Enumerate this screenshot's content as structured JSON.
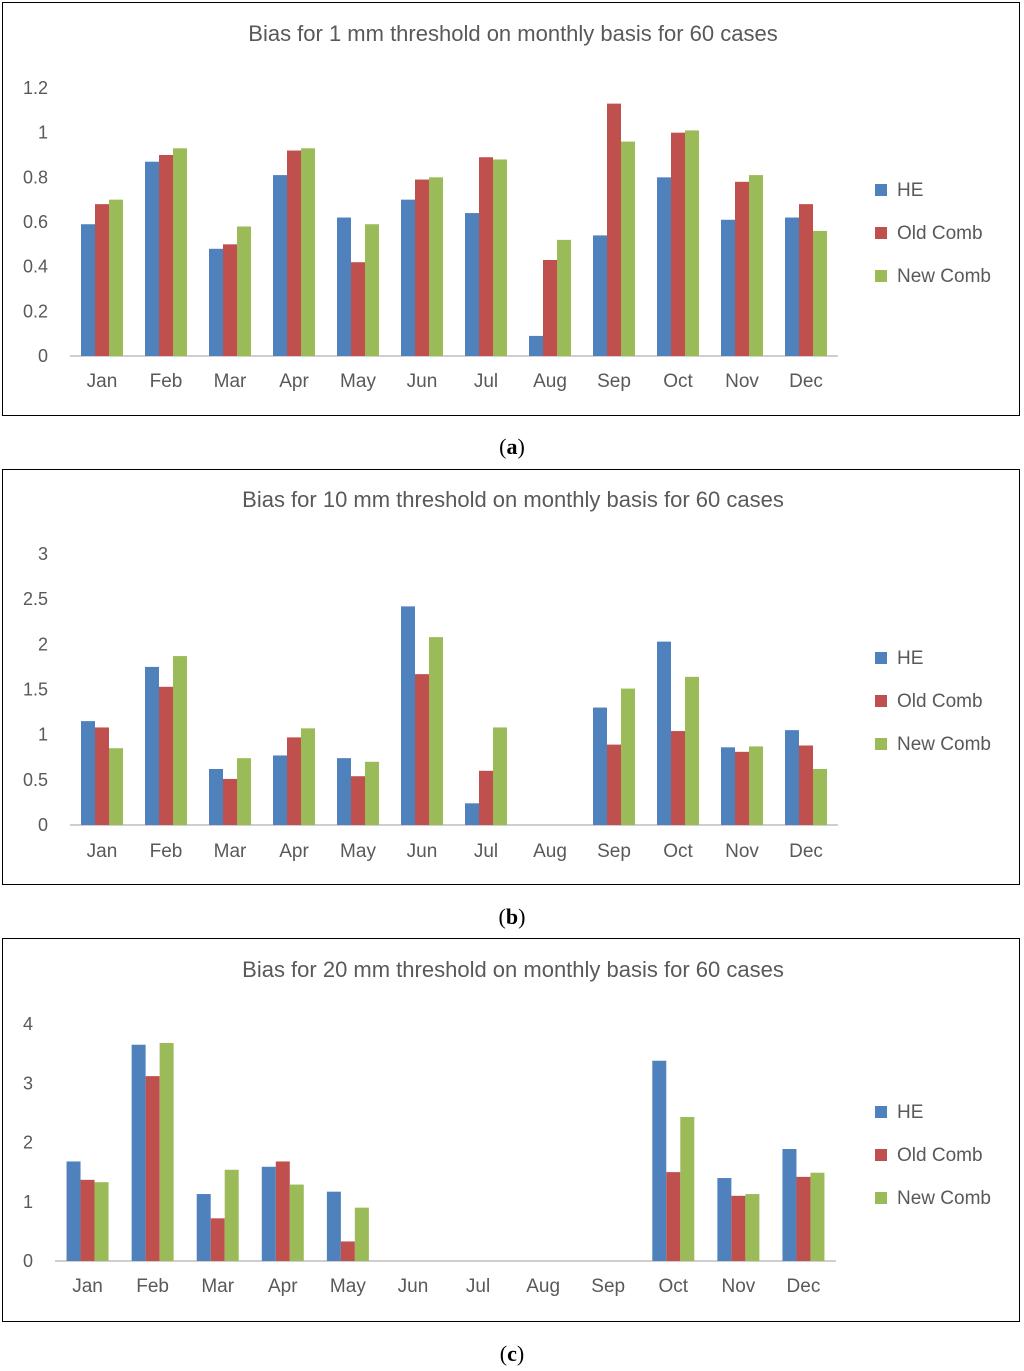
{
  "chart_data": [
    {
      "type": "bar",
      "title": "Bias for 1 mm threshold on monthly basis for 60 cases",
      "caption": "a",
      "categories": [
        "Jan",
        "Feb",
        "Mar",
        "Apr",
        "May",
        "Jun",
        "Jul",
        "Aug",
        "Sep",
        "Oct",
        "Nov",
        "Dec"
      ],
      "series": [
        {
          "name": "HE",
          "color": "#4F81BD",
          "values": [
            0.59,
            0.87,
            0.48,
            0.81,
            0.62,
            0.7,
            0.64,
            0.09,
            0.54,
            0.8,
            0.61,
            0.62
          ]
        },
        {
          "name": "Old Comb",
          "color": "#C0504D",
          "values": [
            0.68,
            0.9,
            0.5,
            0.92,
            0.42,
            0.79,
            0.89,
            0.43,
            1.13,
            1.0,
            0.78,
            0.68
          ]
        },
        {
          "name": "New Comb",
          "color": "#9BBB59",
          "values": [
            0.7,
            0.93,
            0.58,
            0.93,
            0.59,
            0.8,
            0.88,
            0.52,
            0.96,
            1.01,
            0.81,
            0.56
          ]
        }
      ],
      "ylim": [
        0,
        1.2
      ],
      "yticks": [
        0,
        0.2,
        0.4,
        0.6,
        0.8,
        1,
        1.2
      ],
      "ytick_labels": [
        "0",
        "0.2",
        "0.4",
        "0.6",
        "0.8",
        "1",
        "1.2"
      ],
      "xlabel": "",
      "ylabel": "",
      "legend": "right",
      "grid": false
    },
    {
      "type": "bar",
      "title": "Bias for 10 mm threshold on monthly basis for 60 cases",
      "caption": "b",
      "categories": [
        "Jan",
        "Feb",
        "Mar",
        "Apr",
        "May",
        "Jun",
        "Jul",
        "Aug",
        "Sep",
        "Oct",
        "Nov",
        "Dec"
      ],
      "series": [
        {
          "name": "HE",
          "color": "#4F81BD",
          "values": [
            1.15,
            1.75,
            0.62,
            0.77,
            0.74,
            2.42,
            0.24,
            0,
            1.3,
            2.03,
            0.86,
            1.05
          ]
        },
        {
          "name": "Old Comb",
          "color": "#C0504D",
          "values": [
            1.08,
            1.53,
            0.51,
            0.97,
            0.54,
            1.67,
            0.6,
            0,
            0.89,
            1.04,
            0.81,
            0.88
          ]
        },
        {
          "name": "New Comb",
          "color": "#9BBB59",
          "values": [
            0.85,
            1.87,
            0.74,
            1.07,
            0.7,
            2.08,
            1.08,
            0,
            1.51,
            1.64,
            0.87,
            0.62
          ]
        }
      ],
      "ylim": [
        0,
        3
      ],
      "yticks": [
        0,
        0.5,
        1,
        1.5,
        2,
        2.5,
        3
      ],
      "ytick_labels": [
        "0",
        "0.5",
        "1",
        "1.5",
        "2",
        "2.5",
        "3"
      ],
      "xlabel": "",
      "ylabel": "",
      "legend": "right",
      "grid": false
    },
    {
      "type": "bar",
      "title": "Bias for 20 mm threshold on monthly basis for 60 cases",
      "caption": "c",
      "categories": [
        "Jan",
        "Feb",
        "Mar",
        "Apr",
        "May",
        "Jun",
        "Jul",
        "Aug",
        "Sep",
        "Oct",
        "Nov",
        "Dec"
      ],
      "series": [
        {
          "name": "HE",
          "color": "#4F81BD",
          "values": [
            1.68,
            3.65,
            1.13,
            1.59,
            1.17,
            0,
            0,
            0,
            0,
            3.38,
            1.4,
            1.89
          ]
        },
        {
          "name": "Old Comb",
          "color": "#C0504D",
          "values": [
            1.37,
            3.12,
            0.72,
            1.68,
            0.33,
            0,
            0,
            0,
            0,
            1.5,
            1.1,
            1.42
          ]
        },
        {
          "name": "New Comb",
          "color": "#9BBB59",
          "values": [
            1.33,
            3.68,
            1.54,
            1.29,
            0.9,
            0,
            0,
            0,
            0,
            2.43,
            1.13,
            1.49
          ]
        }
      ],
      "ylim": [
        0,
        4
      ],
      "yticks": [
        0,
        1,
        2,
        3,
        4
      ],
      "ytick_labels": [
        "0",
        "1",
        "2",
        "3",
        "4"
      ],
      "xlabel": "",
      "ylabel": "",
      "legend": "right",
      "grid": false
    }
  ]
}
